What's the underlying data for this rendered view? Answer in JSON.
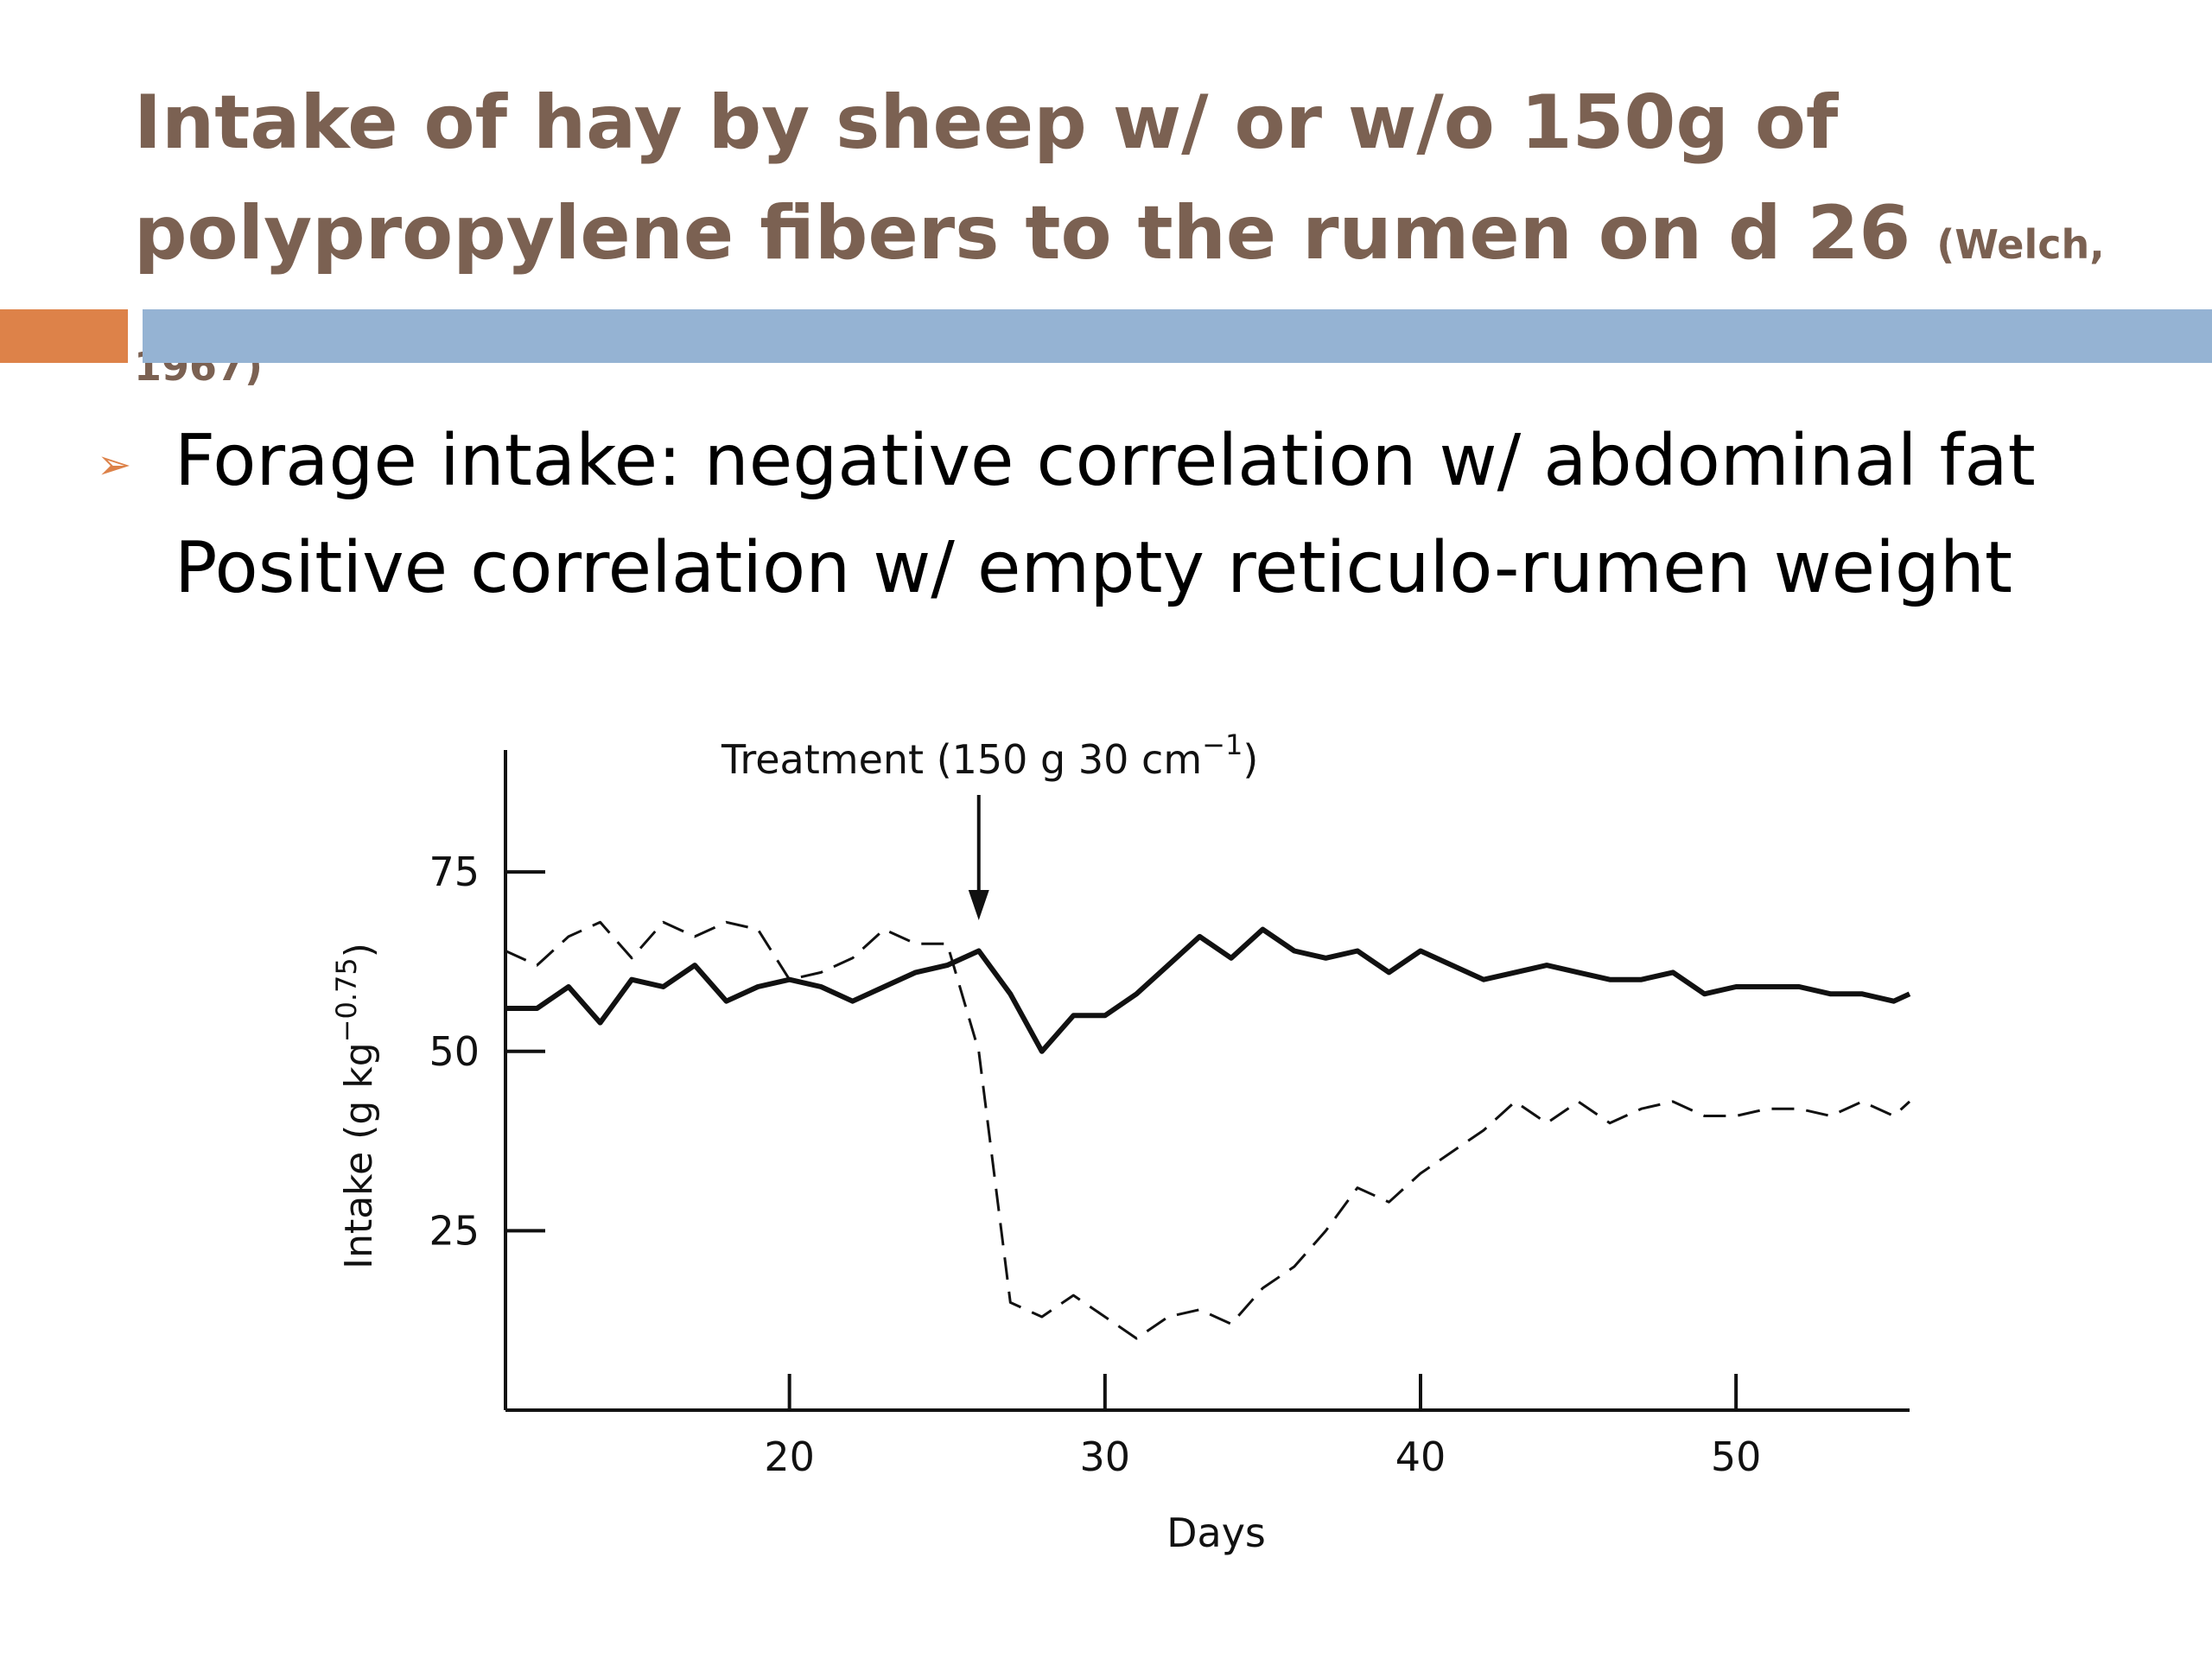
{
  "slide": {
    "title_line1": "Intake of hay by sheep w/ or w/o 150g of",
    "title_line2": "polypropylene fibers to the rumen on d 26",
    "citation": "(Welch, 1967)",
    "bullet_marker": "➢",
    "bullet_line1": "Forage intake: negative correlation w/ abdominal fat",
    "bullet_line2": "Positive correlation w/ empty reticulo-rumen weight"
  },
  "colors": {
    "title": "#7b6152",
    "accent_orange": "#dd8249",
    "accent_blue": "#95b3d3",
    "chart_ink": "#111111"
  },
  "chart_data": {
    "type": "line",
    "xlabel": "Days",
    "ylabel": "Intake (g kg",
    "ylabel_exponent": "−0.75",
    "ylabel_close": ")",
    "xlim": [
      11,
      55.5
    ],
    "ylim": [
      0,
      92
    ],
    "x_ticks": [
      20,
      30,
      40,
      50
    ],
    "y_ticks": [
      25,
      50,
      75
    ],
    "x_tick_labels": [
      "20",
      "30",
      "40",
      "50"
    ],
    "y_tick_labels": [
      "25",
      "50",
      "75"
    ],
    "annotation": {
      "text": "Treatment (150 g 30 cm",
      "exponent": "−1",
      "close": ")",
      "x": 26
    },
    "series": [
      {
        "style": "solid",
        "x": [
          11,
          12,
          13,
          14,
          15,
          16,
          17,
          18,
          19,
          20,
          21,
          22,
          23,
          24,
          25,
          26,
          27,
          28,
          29,
          30,
          31,
          32,
          33,
          34,
          35,
          36,
          37,
          38,
          39,
          40,
          41,
          42,
          43,
          44,
          45,
          46,
          47,
          48,
          49,
          50,
          51,
          52,
          53,
          54,
          55,
          55.5
        ],
        "y": [
          56,
          56,
          59,
          54,
          60,
          59,
          62,
          57,
          59,
          60,
          59,
          57,
          59,
          61,
          62,
          64,
          58,
          50,
          55,
          55,
          58,
          62,
          66,
          63,
          67,
          64,
          63,
          64,
          61,
          64,
          62,
          60,
          61,
          62,
          61,
          60,
          60,
          61,
          58,
          59,
          59,
          59,
          58,
          58,
          57,
          58
        ]
      },
      {
        "style": "dashed",
        "x": [
          11,
          12,
          13,
          14,
          15,
          16,
          17,
          18,
          19,
          20,
          21,
          22,
          23,
          24,
          25,
          26,
          27,
          28,
          29,
          30,
          31,
          32,
          33,
          34,
          35,
          36,
          37,
          38,
          39,
          40,
          41,
          42,
          43,
          44,
          45,
          46,
          47,
          48,
          49,
          50,
          51,
          52,
          53,
          54,
          55,
          55.5
        ],
        "y": [
          64,
          62,
          66,
          68,
          63,
          68,
          66,
          68,
          67,
          60,
          61,
          63,
          67,
          65,
          65,
          50,
          15,
          13,
          16,
          13,
          10,
          13,
          14,
          12,
          17,
          20,
          25,
          31,
          29,
          33,
          36,
          39,
          43,
          40,
          43,
          40,
          42,
          43,
          41,
          41,
          42,
          42,
          41,
          43,
          41,
          43
        ]
      }
    ]
  }
}
